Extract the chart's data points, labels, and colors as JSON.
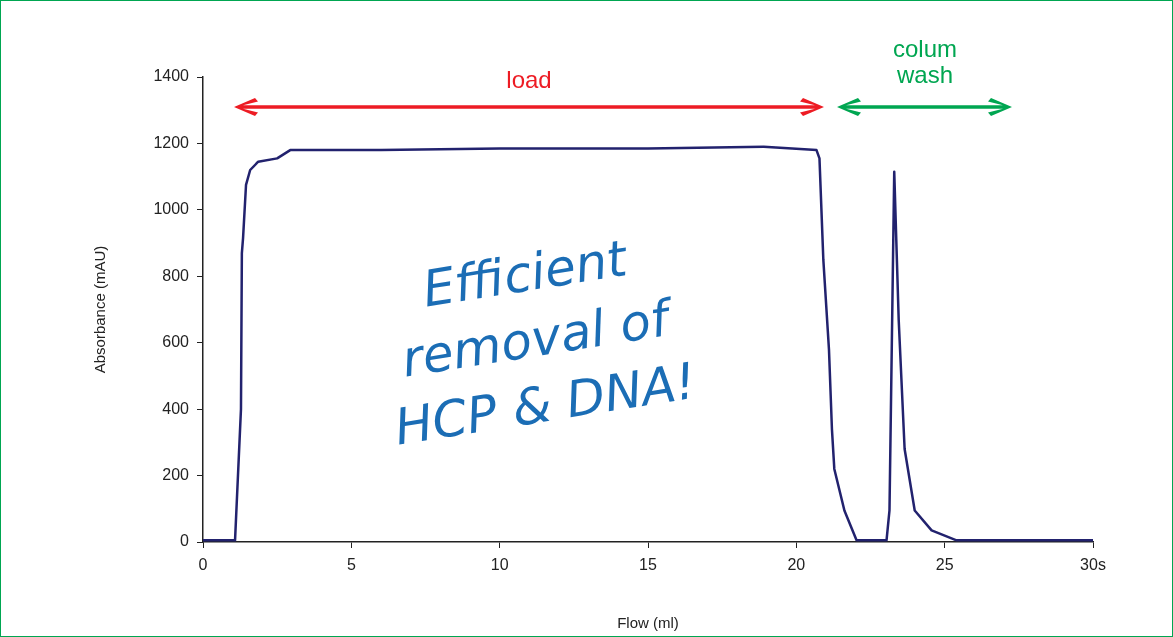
{
  "chart_data": {
    "type": "line",
    "xlabel": "Flow (ml)",
    "ylabel": "Absorbance (mAU)",
    "xlim": [
      0,
      30
    ],
    "xticks": [
      0,
      5,
      10,
      15,
      20,
      25,
      {
        "value": 30,
        "label": "30s"
      }
    ],
    "ylim": [
      0,
      1400
    ],
    "yticks": [
      0,
      200,
      400,
      600,
      800,
      1000,
      1200,
      1400
    ],
    "grid": false,
    "legend": false,
    "marker": "none",
    "line_style": "solid",
    "series": [
      {
        "color": "#22226e",
        "x": [
          0,
          1.08,
          1.28,
          1.31,
          1.35,
          1.45,
          1.59,
          1.86,
          2.5,
          2.94,
          6,
          10,
          15,
          18.9,
          20.68,
          20.78,
          20.91,
          21.1,
          21.2,
          21.28,
          21.62,
          22.03,
          23.04,
          23.14,
          23.3,
          23.45,
          23.65,
          23.99,
          24.56,
          25.4,
          30
        ],
        "values": [
          5,
          5,
          400,
          870,
          915,
          1075,
          1120,
          1145,
          1155,
          1180,
          1180,
          1185,
          1185,
          1190,
          1180,
          1155,
          850,
          580,
          340,
          220,
          95,
          5,
          5,
          95,
          1115,
          670,
          280,
          95,
          35,
          5,
          5
        ]
      }
    ],
    "annotations": [
      "load",
      "colum wash",
      "Efficient removal of HCP & DNA!"
    ]
  }
}
